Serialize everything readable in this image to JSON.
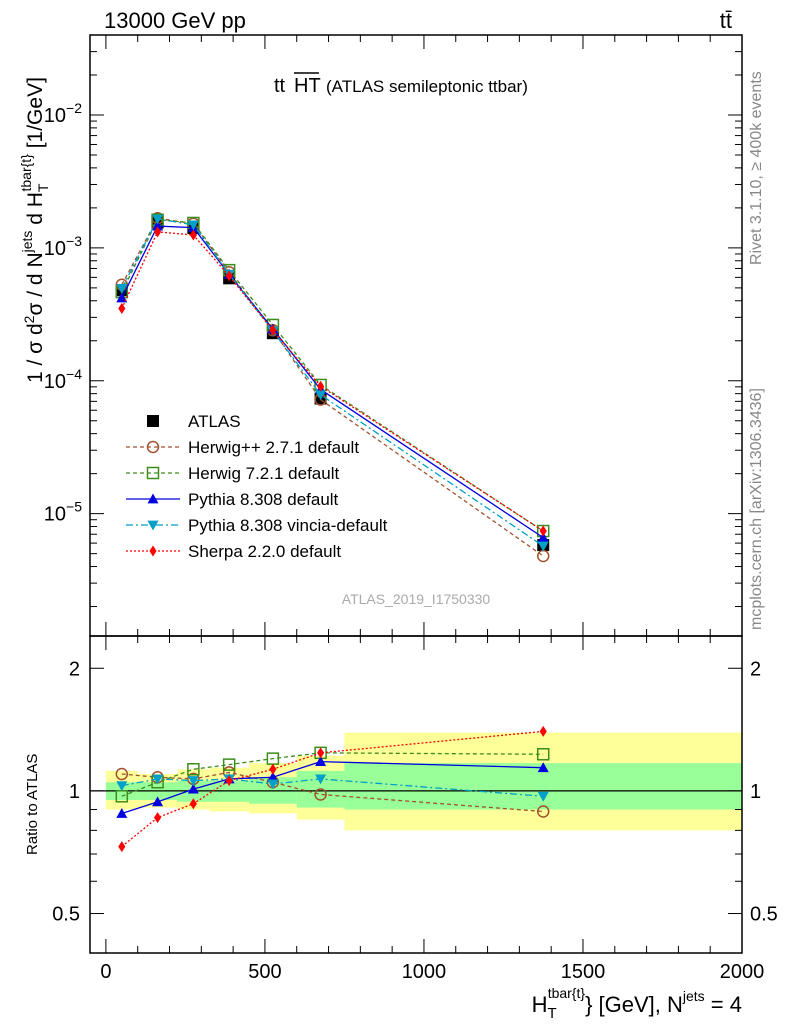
{
  "header": {
    "left": "13000 GeV pp",
    "right": "tt̄",
    "plot_title_main": "tt",
    "plot_title_over": "HT",
    "plot_title_rest": "(ATLAS semileptonic ttbar)",
    "side_rivet": "Rivet 3.1.10, ≥ 400k events",
    "side_mcplots": "mcplots.cern.ch [arXiv:1306.3436]",
    "analysis_id": "ATLAS_2019_I1750330"
  },
  "axes": {
    "ylabel_main": "1 / σ d²σ / d N^jets d H_T^tbar{t} [1/GeV]",
    "ylabel_ratio": "Ratio to ATLAS",
    "xlabel": "H_T^tbar{t} [GeV], N^jets = 4",
    "x_ticks": [
      "0",
      "500",
      "1000",
      "1500",
      "2000"
    ],
    "main_y_ticks": [
      "10⁻²",
      "10⁻³",
      "10⁻⁴",
      "10⁻⁵"
    ],
    "ratio_y_ticks": [
      "2",
      "1",
      "0.5"
    ]
  },
  "chart_data": [
    {
      "type": "line",
      "panel": "main",
      "log_y": true,
      "xlim": [
        -50,
        2000
      ],
      "ylim": [
        1.2e-06,
        0.04
      ],
      "x": [
        50,
        162.5,
        275,
        387.5,
        525,
        675,
        1375
      ],
      "x_bin_edges": [
        0,
        100,
        225,
        325,
        450,
        600,
        750,
        2000
      ],
      "series": [
        {
          "name": "ATLAS",
          "color": "#000000",
          "marker": "square",
          "dash": "",
          "values": [
            0.00048,
            0.00155,
            0.00141,
            0.00059,
            0.000228,
            7.35e-05,
            5.8e-06
          ]
        },
        {
          "name": "Herwig++ 2.7.1 default",
          "color": "#A0522D",
          "marker": "circle-open",
          "dash": "4,3",
          "values": [
            0.000528,
            0.00167,
            0.00152,
            0.000655,
            0.00024,
            7.22e-05,
            4.8e-06
          ]
        },
        {
          "name": "Herwig 7.2.1 default",
          "color": "#3C8C1E",
          "marker": "square-open",
          "dash": "4,3",
          "values": [
            0.000465,
            0.00163,
            0.00154,
            0.00068,
            0.000263,
            9.3e-05,
            7.4e-06
          ]
        },
        {
          "name": "Pythia 8.308 default",
          "color": "#0000E0",
          "marker": "triangle-up",
          "dash": "",
          "values": [
            0.00042,
            0.00146,
            0.00142,
            0.000632,
            0.000245,
            8.6e-05,
            6.6e-06
          ]
        },
        {
          "name": "Pythia 8.308 vincia-default",
          "color": "#00A0C8",
          "marker": "triangle-down",
          "dash": "7,3,2,3",
          "values": [
            0.000495,
            0.00165,
            0.00149,
            0.000633,
            0.000237,
            7.85e-05,
            5.7e-06
          ]
        },
        {
          "name": "Sherpa 2.2.0 default",
          "color": "#FF0000",
          "marker": "diamond",
          "dash": "2,2",
          "values": [
            0.00035,
            0.00132,
            0.00125,
            0.000615,
            0.00024,
            9.1e-05,
            7.4e-06
          ]
        }
      ]
    },
    {
      "type": "line",
      "panel": "ratio",
      "log_y": true,
      "xlim": [
        -50,
        2000
      ],
      "ylim": [
        0.4,
        2.4
      ],
      "x": [
        50,
        162.5,
        275,
        387.5,
        525,
        675,
        1375
      ],
      "bands": {
        "x_bin_edges": [
          0,
          100,
          225,
          325,
          450,
          600,
          750,
          2000
        ],
        "inner_green": [
          [
            0.95,
            1.05
          ],
          [
            0.95,
            1.05
          ],
          [
            0.94,
            1.06
          ],
          [
            0.94,
            1.06
          ],
          [
            0.93,
            1.08
          ],
          [
            0.91,
            1.12
          ],
          [
            0.9,
            1.17
          ]
        ],
        "outer_yellow": [
          [
            0.9,
            1.12
          ],
          [
            0.91,
            1.1
          ],
          [
            0.9,
            1.13
          ],
          [
            0.89,
            1.14
          ],
          [
            0.88,
            1.17
          ],
          [
            0.85,
            1.22
          ],
          [
            0.8,
            1.39
          ]
        ]
      },
      "series": [
        {
          "name": "Herwig++ 2.7.1 default",
          "color": "#A0522D",
          "marker": "circle-open",
          "dash": "4,3",
          "values": [
            1.1,
            1.08,
            1.07,
            1.11,
            1.05,
            0.98,
            0.89
          ]
        },
        {
          "name": "Herwig 7.2.1 default",
          "color": "#3C8C1E",
          "marker": "square-open",
          "dash": "4,3",
          "values": [
            0.97,
            1.05,
            1.13,
            1.16,
            1.2,
            1.24,
            1.23
          ]
        },
        {
          "name": "Pythia 8.308 default",
          "color": "#0000E0",
          "marker": "triangle-up",
          "dash": "",
          "values": [
            0.88,
            0.94,
            1.01,
            1.07,
            1.08,
            1.18,
            1.14
          ]
        },
        {
          "name": "Pythia 8.308 vincia-default",
          "color": "#00A0C8",
          "marker": "triangle-down",
          "dash": "7,3,2,3",
          "values": [
            1.03,
            1.07,
            1.06,
            1.07,
            1.04,
            1.07,
            0.97
          ]
        },
        {
          "name": "Sherpa 2.2.0 default",
          "color": "#FF0000",
          "marker": "diamond",
          "dash": "2,2",
          "values": [
            0.73,
            0.86,
            0.93,
            1.06,
            1.13,
            1.24,
            1.4
          ]
        }
      ]
    }
  ]
}
